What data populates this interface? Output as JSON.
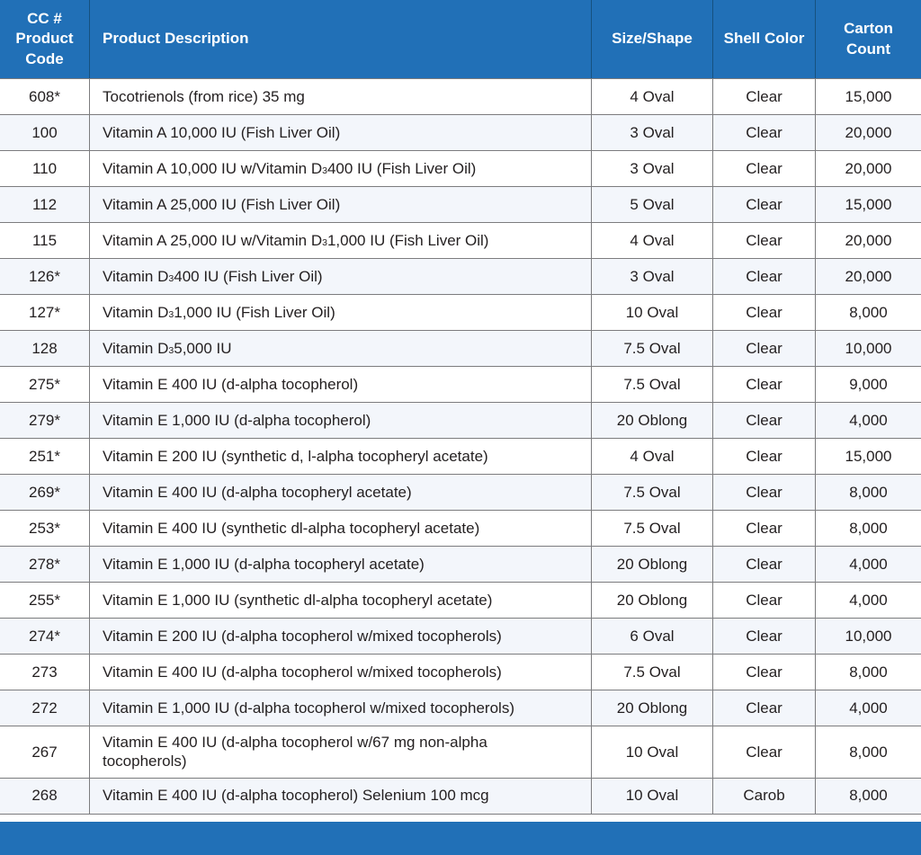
{
  "table": {
    "columns": [
      {
        "id": "code",
        "label": "CC #\nProduct\nCode"
      },
      {
        "id": "description",
        "label": "Product Description"
      },
      {
        "id": "size",
        "label": "Size/Shape"
      },
      {
        "id": "shell",
        "label": "Shell Color"
      },
      {
        "id": "count",
        "label": "Carton\nCount"
      }
    ],
    "subscript_marker": "~",
    "rows": [
      {
        "code": "608*",
        "description": "Tocotrienols (from rice) 35 mg",
        "size": "4 Oval",
        "shell": "Clear",
        "count": "15,000"
      },
      {
        "code": "100",
        "description": "Vitamin A 10,000 IU (Fish Liver Oil)",
        "size": "3 Oval",
        "shell": "Clear",
        "count": "20,000"
      },
      {
        "code": "110",
        "description": "Vitamin A 10,000 IU w/Vitamin D~3~ 400 IU (Fish Liver Oil)",
        "size": "3 Oval",
        "shell": "Clear",
        "count": "20,000"
      },
      {
        "code": "112",
        "description": "Vitamin A 25,000 IU (Fish Liver Oil)",
        "size": "5 Oval",
        "shell": "Clear",
        "count": "15,000"
      },
      {
        "code": "115",
        "description": "Vitamin A 25,000 IU w/Vitamin D~3~ 1,000 IU (Fish Liver Oil)",
        "size": "4 Oval",
        "shell": "Clear",
        "count": "20,000"
      },
      {
        "code": "126*",
        "description": "Vitamin D~3~ 400 IU (Fish Liver Oil)",
        "size": "3 Oval",
        "shell": "Clear",
        "count": "20,000"
      },
      {
        "code": "127*",
        "description": "Vitamin D~3~ 1,000 IU (Fish Liver Oil)",
        "size": "10 Oval",
        "shell": "Clear",
        "count": "8,000"
      },
      {
        "code": "128",
        "description": "Vitamin D~3~ 5,000 IU",
        "size": "7.5 Oval",
        "shell": "Clear",
        "count": "10,000"
      },
      {
        "code": "275*",
        "description": "Vitamin E 400 IU (d-alpha tocopherol)",
        "size": "7.5 Oval",
        "shell": "Clear",
        "count": "9,000"
      },
      {
        "code": "279*",
        "description": "Vitamin E 1,000 IU (d-alpha tocopherol)",
        "size": "20 Oblong",
        "shell": "Clear",
        "count": "4,000"
      },
      {
        "code": "251*",
        "description": "Vitamin E 200 IU (synthetic d, l-alpha tocopheryl acetate)",
        "size": "4 Oval",
        "shell": "Clear",
        "count": "15,000"
      },
      {
        "code": "269*",
        "description": "Vitamin E 400 IU (d-alpha tocopheryl acetate)",
        "size": "7.5 Oval",
        "shell": "Clear",
        "count": "8,000"
      },
      {
        "code": "253*",
        "description": "Vitamin E 400 IU (synthetic dl-alpha tocopheryl acetate)",
        "size": "7.5 Oval",
        "shell": "Clear",
        "count": "8,000"
      },
      {
        "code": "278*",
        "description": "Vitamin E 1,000 IU (d-alpha tocopheryl acetate)",
        "size": "20 Oblong",
        "shell": "Clear",
        "count": "4,000"
      },
      {
        "code": "255*",
        "description": "Vitamin E 1,000 IU (synthetic dl-alpha tocopheryl acetate)",
        "size": "20 Oblong",
        "shell": "Clear",
        "count": "4,000"
      },
      {
        "code": "274*",
        "description": "Vitamin E 200 IU (d-alpha tocopherol w/mixed tocopherols)",
        "size": "6 Oval",
        "shell": "Clear",
        "count": "10,000"
      },
      {
        "code": "273",
        "description": "Vitamin E 400 IU (d-alpha tocopherol w/mixed tocopherols)",
        "size": "7.5 Oval",
        "shell": "Clear",
        "count": "8,000"
      },
      {
        "code": "272",
        "description": "Vitamin E 1,000 IU (d-alpha tocopherol w/mixed tocopherols)",
        "size": "20 Oblong",
        "shell": "Clear",
        "count": "4,000"
      },
      {
        "code": "267",
        "description": "Vitamin E 400 IU (d-alpha tocopherol w/67 mg non-alpha tocopherols)",
        "size": "10 Oval",
        "shell": "Clear",
        "count": "8,000"
      },
      {
        "code": "268",
        "description": "Vitamin E 400 IU (d-alpha tocopherol) Selenium 100 mcg",
        "size": "10 Oval",
        "shell": "Carob",
        "count": "8,000"
      }
    ]
  },
  "colors": {
    "header_bg": "#2170B7",
    "footer_bg": "#2170B7",
    "alt_row_bg": "#F3F6FB",
    "border": "#7C7C7E",
    "header_divider": "#16517F",
    "text": "#231F20",
    "header_text": "#FFFFFF"
  }
}
